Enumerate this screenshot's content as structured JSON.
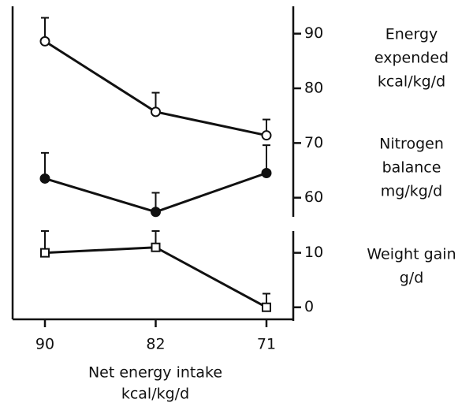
{
  "chart_data": {
    "type": "line",
    "categories": [
      "90",
      "82",
      "71"
    ],
    "xlabel": [
      "Net energy intake",
      "kcal/kg/d"
    ],
    "ylim": [
      56.5,
      95
    ],
    "yticks": [
      60,
      70,
      80,
      90
    ],
    "y2lim": [
      -2.5,
      14
    ],
    "y2ticks": [
      0,
      10
    ],
    "series": [
      {
        "name": [
          "Energy",
          "expended",
          "kcal/kg/d"
        ],
        "color": "#111111",
        "marker": "circle-open",
        "axis": "y",
        "values": [
          88.6,
          75.7,
          71.4
        ],
        "errors": [
          4.3,
          3.5,
          2.9
        ]
      },
      {
        "name": [
          "Nitrogen",
          "balance",
          "mg/kg/d"
        ],
        "color": "#111111",
        "marker": "circle-filled",
        "axis": "y",
        "values": [
          63.5,
          57.4,
          64.5
        ],
        "errors": [
          4.7,
          3.5,
          5.1
        ]
      },
      {
        "name": [
          "Weight gain",
          "g/d"
        ],
        "color": "#111111",
        "marker": "square-open",
        "axis": "y2",
        "values": [
          10,
          11,
          0
        ],
        "errors": [
          4,
          3,
          2.5
        ]
      }
    ]
  }
}
